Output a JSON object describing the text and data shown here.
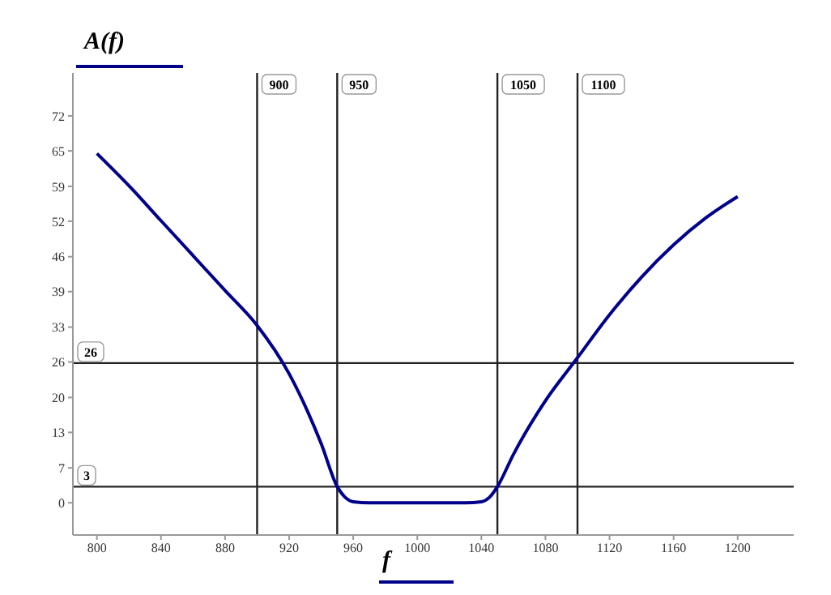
{
  "chart_data": {
    "type": "line",
    "xlabel": "f",
    "ylabel": "A(f)",
    "x": [
      800,
      820,
      840,
      860,
      880,
      900,
      920,
      940,
      950,
      955,
      960,
      970,
      1000,
      1030,
      1040,
      1045,
      1050,
      1060,
      1080,
      1100,
      1120,
      1140,
      1160,
      1180,
      1200
    ],
    "series": [
      {
        "color": "#00008b",
        "values": [
          65,
          59,
          52.5,
          46,
          39.5,
          33,
          24,
          11,
          3,
          1,
          0.2,
          0,
          0,
          0,
          0.2,
          1,
          3,
          9,
          19,
          27,
          35,
          42,
          48,
          53,
          57
        ]
      }
    ],
    "xlim": [
      785,
      1235
    ],
    "ylim": [
      -6,
      80
    ],
    "xticks": [
      800,
      840,
      880,
      920,
      960,
      1000,
      1040,
      1080,
      1120,
      1160,
      1200
    ],
    "yticks": [
      0,
      {
        "value": 6.5,
        "label": "7"
      },
      {
        "value": 13.1,
        "label": "13"
      },
      {
        "value": 19.6,
        "label": "20"
      },
      {
        "value": 26.2,
        "label": "26"
      },
      {
        "value": 32.7,
        "label": "33"
      },
      {
        "value": 39.3,
        "label": "39"
      },
      {
        "value": 45.8,
        "label": "46"
      },
      {
        "value": 52.4,
        "label": "52"
      },
      {
        "value": 58.9,
        "label": "59"
      },
      {
        "value": 65.5,
        "label": "65"
      },
      72
    ],
    "ref_lines": [
      {
        "axis": "x",
        "value": 900,
        "label": "900"
      },
      {
        "axis": "x",
        "value": 950,
        "label": "950"
      },
      {
        "axis": "x",
        "value": 1050,
        "label": "1050"
      },
      {
        "axis": "x",
        "value": 1100,
        "label": "1100"
      },
      {
        "axis": "y",
        "value": 26,
        "label": "26"
      },
      {
        "axis": "y",
        "value": 3,
        "label": "3"
      }
    ],
    "grid": false,
    "marker": "none",
    "line_style": "solid"
  }
}
